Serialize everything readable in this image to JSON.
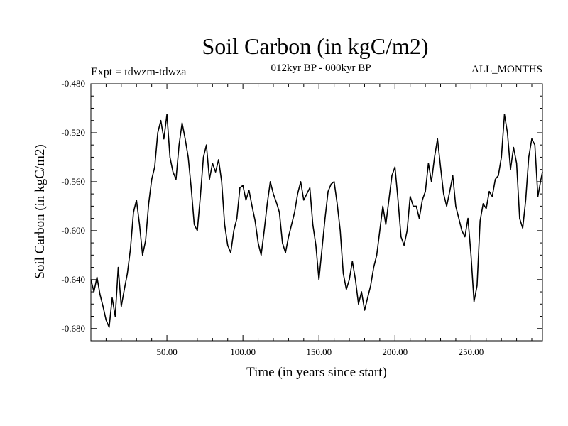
{
  "chart_data": {
    "type": "line",
    "title": "Soil Carbon (in kgC/m2)",
    "subtitle_left": "Expt = tdwzm-tdwza",
    "subtitle_center": "012kyr BP - 000kyr BP",
    "subtitle_right": "ALL_MONTHS",
    "xlabel": "Time (in years since start)",
    "ylabel": "Soil Carbon (in kgC/m2)",
    "xlim": [
      0,
      297
    ],
    "ylim": [
      -0.69,
      -0.48
    ],
    "x_ticks": [
      50,
      100,
      150,
      200,
      250
    ],
    "x_tick_labels": [
      "50.00",
      "100.00",
      "150.00",
      "200.00",
      "250.00"
    ],
    "y_ticks": [
      -0.48,
      -0.52,
      -0.56,
      -0.6,
      -0.64,
      -0.68
    ],
    "y_tick_labels": [
      "-0.480",
      "-0.520",
      "-0.560",
      "-0.600",
      "-0.640",
      "-0.680"
    ],
    "grid": false,
    "line_color": "#000000",
    "series": [
      {
        "x": [
          0,
          2,
          4,
          6,
          8,
          10,
          12,
          14,
          16,
          18,
          20,
          22,
          24,
          26,
          28,
          30,
          32,
          34,
          36,
          38,
          40,
          42,
          44,
          46,
          48,
          50,
          52,
          54,
          56,
          58,
          60,
          62,
          64,
          66,
          68,
          70,
          72,
          74,
          76,
          78,
          80,
          82,
          84,
          86,
          88,
          90,
          92,
          94,
          96,
          98,
          100,
          102,
          104,
          106,
          108,
          110,
          112,
          114,
          116,
          118,
          120,
          122,
          124,
          126,
          128,
          130,
          132,
          134,
          136,
          138,
          140,
          142,
          144,
          146,
          148,
          150,
          152,
          154,
          156,
          158,
          160,
          162,
          164,
          166,
          168,
          170,
          172,
          174,
          176,
          178,
          180,
          182,
          184,
          186,
          188,
          190,
          192,
          194,
          196,
          198,
          200,
          202,
          204,
          206,
          208,
          210,
          212,
          214,
          216,
          218,
          220,
          222,
          224,
          226,
          228,
          230,
          232,
          234,
          236,
          238,
          240,
          242,
          244,
          246,
          248,
          250,
          252,
          254,
          256,
          258,
          260,
          262,
          264,
          266,
          268,
          270,
          272,
          274,
          276,
          278,
          280,
          282,
          284,
          286,
          288,
          290,
          292,
          294,
          296,
          297
        ],
        "y": [
          -0.64,
          -0.65,
          -0.638,
          -0.652,
          -0.662,
          -0.673,
          -0.679,
          -0.655,
          -0.67,
          -0.63,
          -0.662,
          -0.648,
          -0.635,
          -0.615,
          -0.585,
          -0.575,
          -0.595,
          -0.62,
          -0.608,
          -0.578,
          -0.558,
          -0.548,
          -0.52,
          -0.51,
          -0.525,
          -0.505,
          -0.54,
          -0.552,
          -0.558,
          -0.53,
          -0.512,
          -0.525,
          -0.54,
          -0.565,
          -0.595,
          -0.6,
          -0.572,
          -0.54,
          -0.53,
          -0.558,
          -0.545,
          -0.552,
          -0.542,
          -0.56,
          -0.595,
          -0.612,
          -0.618,
          -0.6,
          -0.59,
          -0.565,
          -0.563,
          -0.575,
          -0.567,
          -0.58,
          -0.592,
          -0.61,
          -0.62,
          -0.6,
          -0.578,
          -0.56,
          -0.57,
          -0.577,
          -0.585,
          -0.61,
          -0.618,
          -0.605,
          -0.595,
          -0.585,
          -0.57,
          -0.56,
          -0.575,
          -0.57,
          -0.565,
          -0.595,
          -0.612,
          -0.64,
          -0.615,
          -0.59,
          -0.568,
          -0.562,
          -0.56,
          -0.578,
          -0.6,
          -0.635,
          -0.648,
          -0.64,
          -0.625,
          -0.64,
          -0.66,
          -0.65,
          -0.665,
          -0.655,
          -0.645,
          -0.63,
          -0.62,
          -0.6,
          -0.58,
          -0.595,
          -0.575,
          -0.555,
          -0.548,
          -0.575,
          -0.605,
          -0.612,
          -0.6,
          -0.572,
          -0.58,
          -0.58,
          -0.59,
          -0.575,
          -0.568,
          -0.545,
          -0.56,
          -0.54,
          -0.525,
          -0.548,
          -0.57,
          -0.58,
          -0.568,
          -0.555,
          -0.58,
          -0.59,
          -0.6,
          -0.605,
          -0.59,
          -0.62,
          -0.658,
          -0.645,
          -0.592,
          -0.578,
          -0.582,
          -0.568,
          -0.572,
          -0.558,
          -0.555,
          -0.54,
          -0.505,
          -0.52,
          -0.55,
          -0.532,
          -0.545,
          -0.59,
          -0.598,
          -0.575,
          -0.54,
          -0.525,
          -0.53,
          -0.572,
          -0.558,
          -0.552
        ]
      }
    ]
  }
}
